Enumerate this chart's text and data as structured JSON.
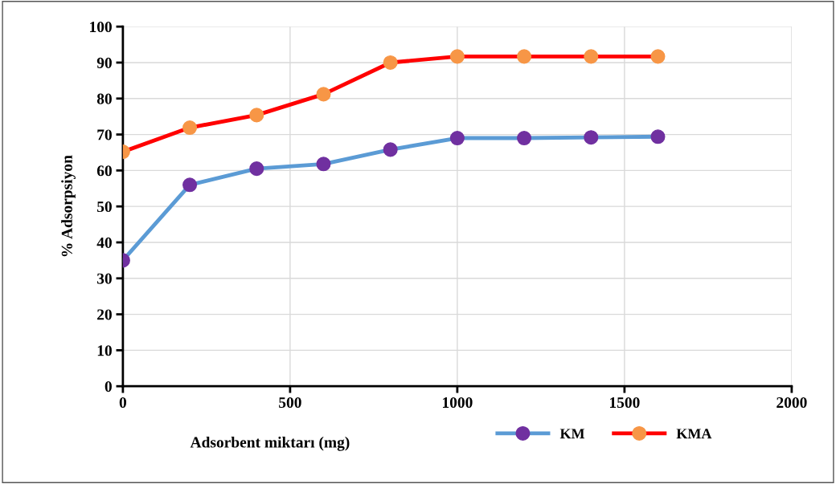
{
  "chart_data": {
    "type": "line",
    "xlabel": "Adsorbent miktarı (mg)",
    "ylabel": "% Adsorpsiyon",
    "x": [
      0,
      200,
      400,
      600,
      800,
      1000,
      1200,
      1400,
      1600
    ],
    "series": [
      {
        "name": "KM",
        "color": "#5b9bd5",
        "colors": [
          "#7030a0",
          "#7030a0",
          "#7030a0",
          "#7030a0",
          "#7030a0",
          "#7030a0",
          "#7030a0",
          "#7030a0",
          "#7030a0"
        ],
        "values": [
          35,
          56,
          60.5,
          61.8,
          65.8,
          69,
          69,
          69.2,
          69.4
        ]
      },
      {
        "name": "KMA",
        "color": "#ff0000",
        "colors": [
          "#f79646",
          "#f79646",
          "#f79646",
          "#f79646",
          "#f79646",
          "#f79646",
          "#f79646",
          "#f79646",
          "#f79646"
        ],
        "values": [
          65.2,
          71.9,
          75.4,
          81.2,
          90,
          91.7,
          91.7,
          91.7,
          91.7
        ]
      }
    ],
    "xlim": [
      0,
      2000
    ],
    "xticks": [
      0,
      500,
      1000,
      1500,
      2000
    ],
    "ylim": [
      0,
      100
    ],
    "yticks": [
      0,
      10,
      20,
      30,
      40,
      50,
      60,
      70,
      80,
      90,
      100
    ],
    "grid": true,
    "legend": "bottom",
    "marker": "circle",
    "line_style": "solid"
  }
}
